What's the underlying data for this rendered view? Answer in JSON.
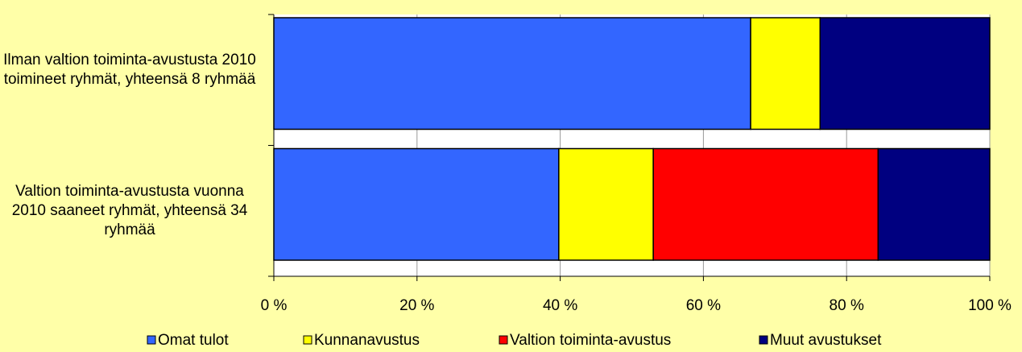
{
  "chart_data": {
    "type": "stacked-barh",
    "categories": [
      "Ilman valtion toiminta-avustusta 2010 toimineet ryhmät, yhteensä 8 ryhmää",
      "Valtion toiminta-avustusta vuonna 2010 saaneet ryhmät, yhteensä 34 ryhmää"
    ],
    "series": [
      {
        "name": "Omat tulot",
        "color": "#3366ff",
        "values": [
          66.6,
          39.8
        ]
      },
      {
        "name": "Kunnanavustus",
        "color": "#ffff00",
        "values": [
          9.7,
          13.2
        ]
      },
      {
        "name": "Valtion toiminta-avustus",
        "color": "#ff0000",
        "values": [
          0,
          31.4
        ]
      },
      {
        "name": "Muut avustukset",
        "color": "#000080",
        "values": [
          23.7,
          15.6
        ]
      }
    ],
    "xlim": [
      0,
      100
    ],
    "xticks": [
      {
        "value": 0,
        "label": "0 %"
      },
      {
        "value": 20,
        "label": "20 %"
      },
      {
        "value": 40,
        "label": "40 %"
      },
      {
        "value": 60,
        "label": "60 %"
      },
      {
        "value": 80,
        "label": "80 %"
      },
      {
        "value": 100,
        "label": "100 %"
      }
    ],
    "grid": true,
    "legend": "bottom"
  }
}
